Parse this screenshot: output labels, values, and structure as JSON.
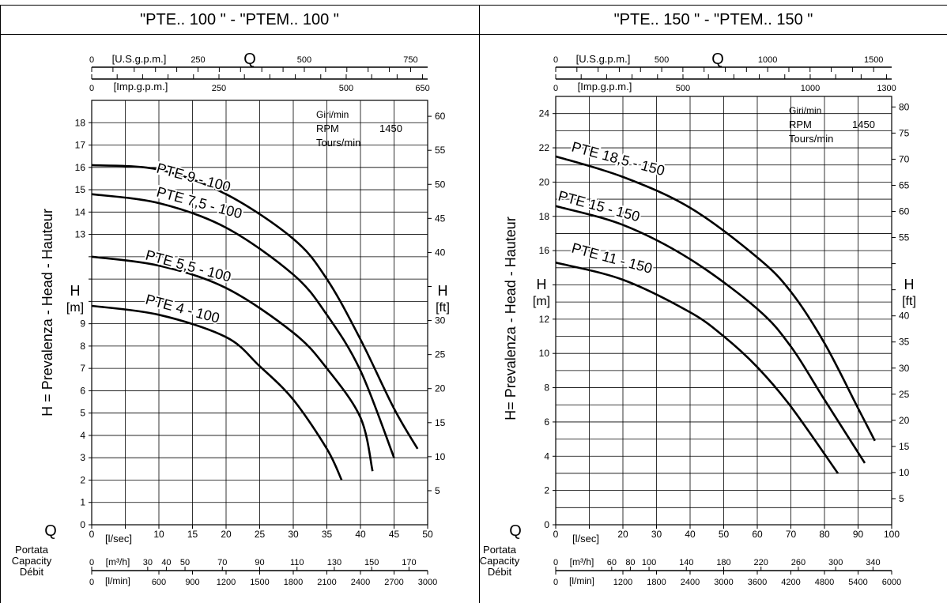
{
  "headers": {
    "left": "\"PTE.. 100 \"   -   \"PTEM.. 100 \"",
    "right": "\"PTE.. 150 \"  -   \"PTEM.. 150 \""
  },
  "chart_data": [
    {
      "type": "line",
      "title": "\"PTE.. 100 \"   -   \"PTEM.. 100 \"",
      "ylabel": "H = Prevalenza - Head - Hauteur",
      "y_unit": "H [m]",
      "y2_unit": "H [ft]",
      "xlabel": "Q",
      "x_unit": "[l/sec]",
      "xlim": [
        0,
        50
      ],
      "ylim": [
        0,
        19
      ],
      "y_ticks": [
        0,
        1,
        2,
        3,
        4,
        5,
        6,
        7,
        8,
        9,
        10,
        11,
        12,
        13,
        14,
        15,
        16,
        17,
        18
      ],
      "y_tick_labels": [
        "",
        "1",
        "2",
        "3",
        "4",
        "5",
        "6",
        "7",
        "8",
        "9",
        "",
        "",
        "",
        "13",
        "14",
        "15",
        "16",
        "17",
        "18"
      ],
      "x_ticks": [
        0,
        5,
        10,
        15,
        20,
        25,
        30,
        35,
        40,
        45,
        50
      ],
      "x_tick_labels": [
        "0",
        "",
        "10",
        "15",
        "20",
        "25",
        "30",
        "35",
        "40",
        "45",
        "50"
      ],
      "ft_ticks": [
        5,
        10,
        15,
        20,
        25,
        30,
        35,
        40,
        45,
        50,
        55,
        60
      ],
      "ft_tick_labels": [
        "5",
        "10",
        "15",
        "20",
        "25",
        "30",
        "",
        "40",
        "45",
        "50",
        "55",
        "60"
      ],
      "q_label": "Q",
      "usgpm": {
        "label": "[U.S.g.p.m.]",
        "ticks": [
          0,
          250,
          500,
          750
        ],
        "tick_labels": [
          "0",
          "250",
          "500",
          "750"
        ],
        "max": 790
      },
      "impgpm": {
        "label": "[Imp.g.p.m.]",
        "ticks": [
          0,
          250,
          500,
          650
        ],
        "tick_labels": [
          "0",
          "250",
          "500",
          "650"
        ],
        "max": 660
      },
      "m3h": {
        "label": "[m³/h]",
        "ticks": [
          0,
          30,
          40,
          50,
          70,
          90,
          110,
          130,
          150,
          170
        ],
        "tick_labels": [
          "0",
          "30",
          "40",
          "50",
          "70",
          "90",
          "110",
          "130",
          "150",
          "170"
        ]
      },
      "lmin": {
        "label": "[l/min]",
        "ticks": [
          0,
          600,
          900,
          1200,
          1500,
          1800,
          2100,
          2400,
          2700,
          3000
        ],
        "tick_labels": [
          "0",
          "600",
          "900",
          "1200",
          "1500",
          "1800",
          "2100",
          "2400",
          "2700",
          "3000"
        ]
      },
      "bottom_labels": [
        "Portata",
        "Capacity",
        "Débit"
      ],
      "rpm": {
        "line1": "Giri/min",
        "line2": "RPM",
        "value": "1450",
        "line3": "Tours/min"
      },
      "series": [
        {
          "name": "PTE 9 - 100",
          "points": [
            [
              0,
              16.1
            ],
            [
              10,
              15.9
            ],
            [
              20,
              14.8
            ],
            [
              30,
              12.8
            ],
            [
              35,
              11.0
            ],
            [
              40,
              8.3
            ],
            [
              45,
              5.2
            ],
            [
              48.5,
              3.4
            ]
          ]
        },
        {
          "name": "PTE 7,5 - 100",
          "points": [
            [
              0,
              14.8
            ],
            [
              10,
              14.4
            ],
            [
              20,
              13.3
            ],
            [
              30,
              11.2
            ],
            [
              35,
              9.4
            ],
            [
              40,
              6.9
            ],
            [
              45,
              3.0
            ]
          ]
        },
        {
          "name": "PTE 5,5 - 100",
          "points": [
            [
              0,
              12.0
            ],
            [
              10,
              11.6
            ],
            [
              20,
              10.6
            ],
            [
              30,
              8.6
            ],
            [
              35,
              7.0
            ],
            [
              40,
              4.8
            ],
            [
              41.8,
              2.4
            ]
          ]
        },
        {
          "name": "PTE 4 - 100",
          "points": [
            [
              0,
              9.8
            ],
            [
              10,
              9.4
            ],
            [
              20,
              8.4
            ],
            [
              25,
              7.1
            ],
            [
              30,
              5.6
            ],
            [
              35,
              3.4
            ],
            [
              37.2,
              2.0
            ]
          ]
        }
      ]
    },
    {
      "type": "line",
      "title": "\"PTE.. 150 \"  -   \"PTEM.. 150 \"",
      "ylabel": "H= Prevalenza - Head - Hauteur",
      "y_unit": "H [m]",
      "y2_unit": "H [ft]",
      "xlabel": "Q",
      "x_unit": "[l/sec]",
      "xlim": [
        0,
        100
      ],
      "ylim": [
        0,
        25
      ],
      "y_ticks": [
        0,
        2,
        4,
        6,
        8,
        10,
        12,
        14,
        16,
        18,
        20,
        22,
        24
      ],
      "y_tick_labels": [
        "",
        "2",
        "4",
        "6",
        "8",
        "10",
        "12",
        "",
        "16",
        "18",
        "20",
        "22",
        "24"
      ],
      "x_ticks": [
        0,
        10,
        20,
        30,
        40,
        50,
        60,
        70,
        80,
        90,
        100
      ],
      "x_tick_labels": [
        "0",
        "",
        "20",
        "30",
        "40",
        "50",
        "60",
        "70",
        "80",
        "90",
        "100"
      ],
      "ft_ticks": [
        5,
        10,
        15,
        20,
        25,
        30,
        35,
        40,
        45,
        50,
        55,
        60,
        65,
        70,
        75,
        80
      ],
      "ft_tick_labels": [
        "5",
        "10",
        "15",
        "20",
        "25",
        "30",
        "35",
        "40",
        "",
        "",
        "55",
        "60",
        "65",
        "70",
        "75",
        "80"
      ],
      "q_label": "Q",
      "usgpm": {
        "label": "[U.S.g.p.m.]",
        "ticks": [
          0,
          500,
          1000,
          1500
        ],
        "tick_labels": [
          "0",
          "500",
          "1000",
          "1500"
        ],
        "max": 1585
      },
      "impgpm": {
        "label": "[Imp.g.p.m.]",
        "ticks": [
          0,
          500,
          1000,
          1300
        ],
        "tick_labels": [
          "0",
          "500",
          "1000",
          "1300"
        ],
        "max": 1320
      },
      "m3h": {
        "label": "[m³/h]",
        "ticks": [
          0,
          60,
          80,
          100,
          140,
          180,
          220,
          260,
          300,
          340
        ],
        "tick_labels": [
          "0",
          "60",
          "80",
          "100",
          "140",
          "180",
          "220",
          "260",
          "300",
          "340"
        ]
      },
      "lmin": {
        "label": "[l/min]",
        "ticks": [
          0,
          1200,
          1800,
          2400,
          3000,
          3600,
          4200,
          4800,
          5400,
          6000
        ],
        "tick_labels": [
          "0",
          "1200",
          "1800",
          "2400",
          "3000",
          "3600",
          "4200",
          "4800",
          "5400",
          "6000"
        ]
      },
      "bottom_labels": [
        "Portata",
        "Capacity",
        "Débit"
      ],
      "rpm": {
        "line1": "Giri/min",
        "line2": "RPM",
        "value": "1450",
        "line3": "Tours/min"
      },
      "series": [
        {
          "name": "PTE 18,5 - 150",
          "points": [
            [
              0,
              21.5
            ],
            [
              20,
              20.3
            ],
            [
              40,
              18.5
            ],
            [
              60,
              15.6
            ],
            [
              70,
              13.6
            ],
            [
              80,
              10.6
            ],
            [
              90,
              6.8
            ],
            [
              95,
              4.9
            ]
          ]
        },
        {
          "name": "PTE 15 - 150",
          "points": [
            [
              0,
              18.6
            ],
            [
              20,
              17.5
            ],
            [
              40,
              15.5
            ],
            [
              60,
              12.6
            ],
            [
              70,
              10.4
            ],
            [
              80,
              7.3
            ],
            [
              92,
              3.6
            ]
          ]
        },
        {
          "name": "PTE 11 - 150",
          "points": [
            [
              0,
              15.3
            ],
            [
              20,
              14.3
            ],
            [
              40,
              12.4
            ],
            [
              50,
              11.0
            ],
            [
              60,
              9.2
            ],
            [
              70,
              6.9
            ],
            [
              84,
              3.0
            ]
          ]
        }
      ]
    }
  ]
}
